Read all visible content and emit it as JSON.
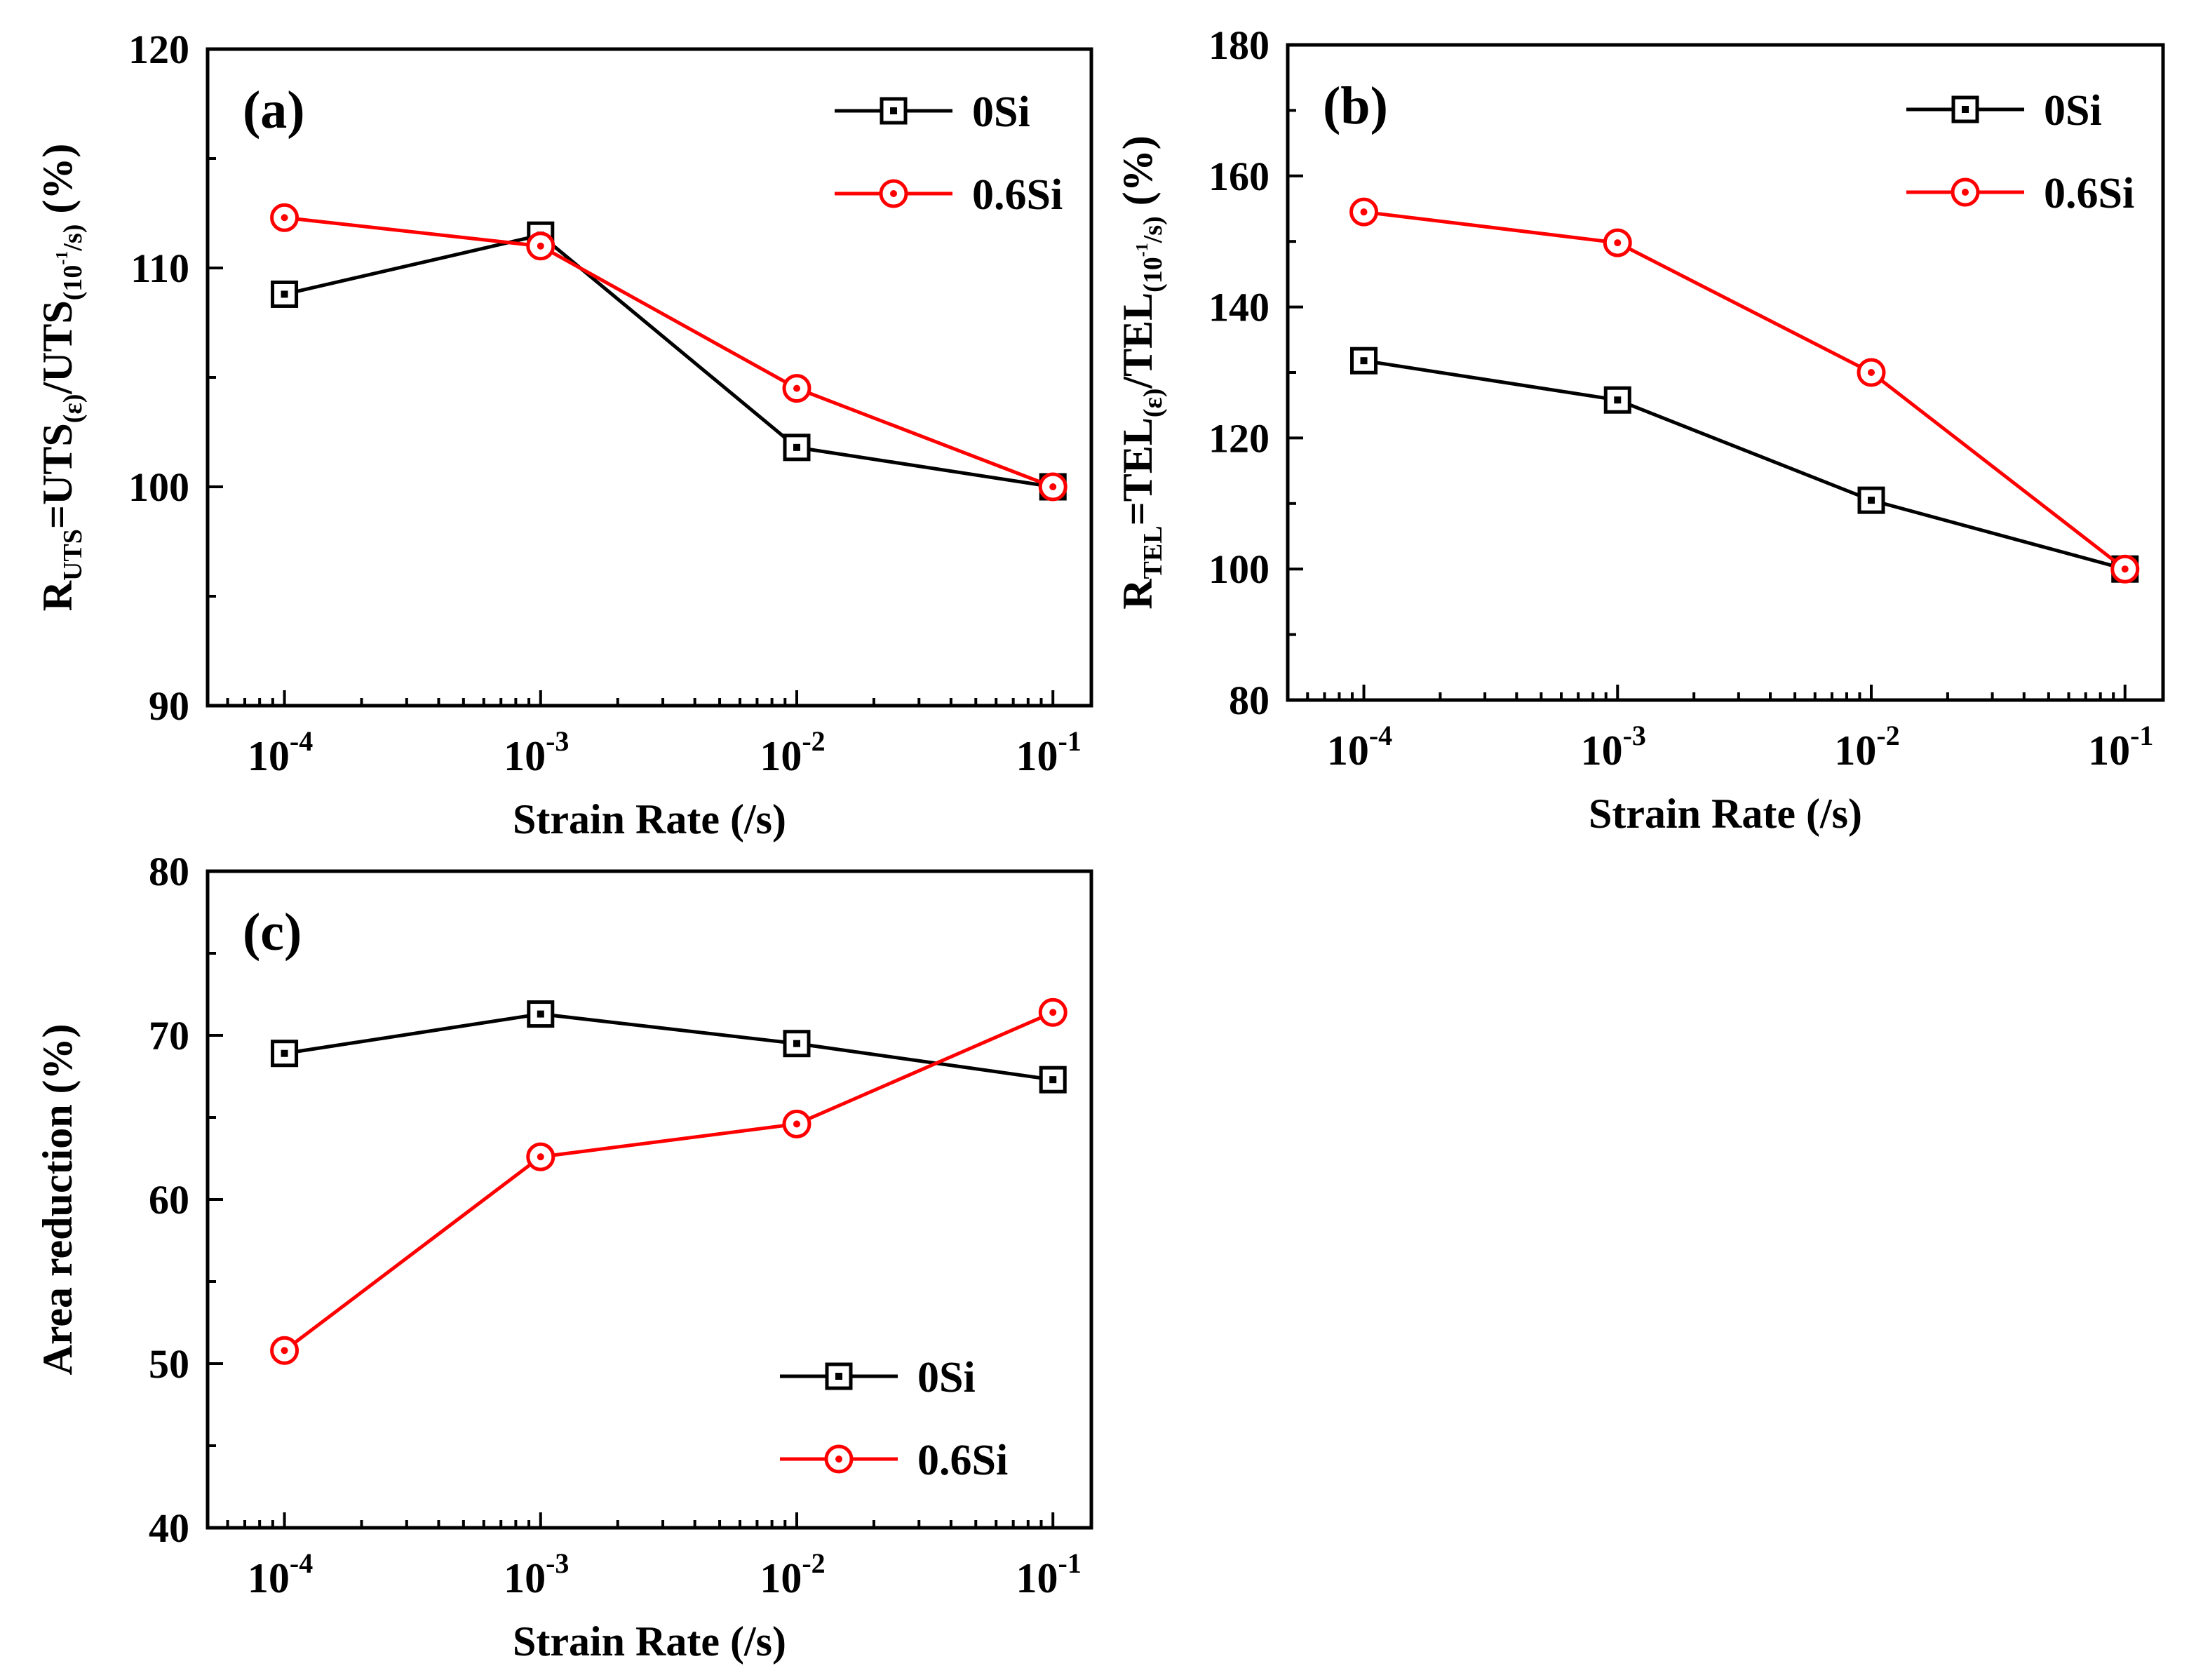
{
  "chart_data": [
    {
      "panel_label": "(a)",
      "type": "line",
      "x_scale": "log",
      "x": [
        0.0001,
        0.001,
        0.01,
        0.1
      ],
      "x_tick_labels": [
        {
          "base": "10",
          "exp": "-4"
        },
        {
          "base": "10",
          "exp": "-3"
        },
        {
          "base": "10",
          "exp": "-2"
        },
        {
          "base": "10",
          "exp": "-1"
        }
      ],
      "xlabel": "Strain Rate (/s)",
      "ylabel": {
        "parts": [
          {
            "t": "R",
            "sub": false
          },
          {
            "t": "UTS",
            "sub": true
          },
          {
            "t": "=UTS",
            "sub": false
          },
          {
            "t": "(ε)",
            "sub": true
          },
          {
            "t": "/UTS",
            "sub": false
          },
          {
            "t": "(10",
            "sub": true
          },
          {
            "t": "-1",
            "sub": "sup"
          },
          {
            "t": "/s)",
            "sub": true
          },
          {
            "t": " (%)",
            "sub": false
          }
        ]
      },
      "ylim": [
        90,
        120
      ],
      "y_ticks": [
        90,
        100,
        110,
        120
      ],
      "legend_position": "top-right",
      "series": [
        {
          "name": "0Si",
          "color": "#000000",
          "marker": "square",
          "values": [
            108.8,
            111.5,
            101.8,
            100.0
          ]
        },
        {
          "name": "0.6Si",
          "color": "#ff0000",
          "marker": "circle",
          "values": [
            112.3,
            111.0,
            104.5,
            100.0
          ]
        }
      ]
    },
    {
      "panel_label": "(b)",
      "type": "line",
      "x_scale": "log",
      "x": [
        0.0001,
        0.001,
        0.01,
        0.1
      ],
      "x_tick_labels": [
        {
          "base": "10",
          "exp": "-4"
        },
        {
          "base": "10",
          "exp": "-3"
        },
        {
          "base": "10",
          "exp": "-2"
        },
        {
          "base": "10",
          "exp": "-1"
        }
      ],
      "xlabel": "Strain Rate (/s)",
      "ylabel": {
        "parts": [
          {
            "t": "R",
            "sub": false
          },
          {
            "t": "TEL",
            "sub": true
          },
          {
            "t": "=TEL",
            "sub": false
          },
          {
            "t": "(ε)",
            "sub": true
          },
          {
            "t": "/TEL",
            "sub": false
          },
          {
            "t": "(10",
            "sub": true
          },
          {
            "t": "-1",
            "sub": "sup"
          },
          {
            "t": "/s)",
            "sub": true
          },
          {
            "t": " (%)",
            "sub": false
          }
        ]
      },
      "ylim": [
        80,
        180
      ],
      "y_ticks": [
        80,
        100,
        120,
        140,
        160,
        180
      ],
      "legend_position": "top-right",
      "series": [
        {
          "name": "0Si",
          "color": "#000000",
          "marker": "square",
          "values": [
            131.8,
            125.8,
            110.5,
            100.0
          ]
        },
        {
          "name": "0.6Si",
          "color": "#ff0000",
          "marker": "circle",
          "values": [
            154.5,
            149.8,
            130.0,
            100.0
          ]
        }
      ]
    },
    {
      "panel_label": "(c)",
      "type": "line",
      "x_scale": "log",
      "x": [
        0.0001,
        0.001,
        0.01,
        0.1
      ],
      "x_tick_labels": [
        {
          "base": "10",
          "exp": "-4"
        },
        {
          "base": "10",
          "exp": "-3"
        },
        {
          "base": "10",
          "exp": "-2"
        },
        {
          "base": "10",
          "exp": "-1"
        }
      ],
      "xlabel": "Strain Rate (/s)",
      "ylabel": {
        "parts": [
          {
            "t": "Area reduction (%)",
            "sub": false
          }
        ]
      },
      "ylim": [
        40,
        80
      ],
      "y_ticks": [
        40,
        50,
        60,
        70,
        80
      ],
      "legend_position": "bottom-right",
      "series": [
        {
          "name": "0Si",
          "color": "#000000",
          "marker": "square",
          "values": [
            68.9,
            71.3,
            69.5,
            67.3
          ]
        },
        {
          "name": "0.6Si",
          "color": "#ff0000",
          "marker": "circle",
          "values": [
            50.8,
            62.6,
            64.6,
            71.4
          ]
        }
      ]
    }
  ]
}
